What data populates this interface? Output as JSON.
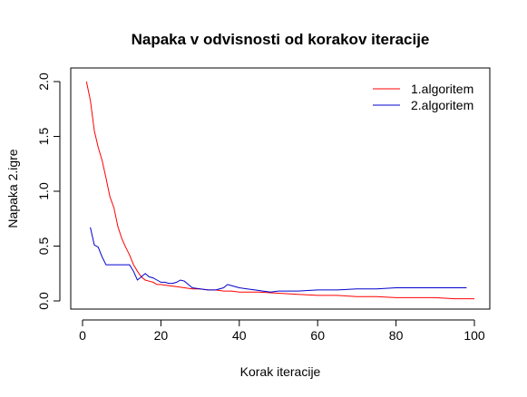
{
  "chart_data": {
    "type": "line",
    "title": "Napaka v odvisnosti od korakov iteracije",
    "xlabel": "Korak iteracije",
    "ylabel": "Napaka 2.igre",
    "xlim": [
      0,
      100
    ],
    "ylim": [
      0,
      2.0
    ],
    "x_ticks": [
      "0",
      "20",
      "40",
      "60",
      "80",
      "100"
    ],
    "y_ticks": [
      "0.0",
      "0.5",
      "1.0",
      "1.5",
      "2.0"
    ],
    "grid": false,
    "legend_position": "top-right",
    "legend_box": false,
    "series": [
      {
        "name": "1.algoritem",
        "color": "#ff0000",
        "x": [
          1,
          2,
          3,
          4,
          5,
          6,
          7,
          8,
          9,
          10,
          11,
          12,
          13,
          14,
          15,
          16,
          17,
          18,
          19,
          20,
          22,
          24,
          26,
          28,
          30,
          32,
          34,
          36,
          38,
          40,
          45,
          50,
          55,
          60,
          65,
          70,
          75,
          80,
          85,
          90,
          95,
          100
        ],
        "y": [
          2.0,
          1.83,
          1.55,
          1.4,
          1.28,
          1.12,
          0.95,
          0.85,
          0.68,
          0.57,
          0.49,
          0.42,
          0.33,
          0.27,
          0.22,
          0.19,
          0.18,
          0.17,
          0.15,
          0.15,
          0.14,
          0.13,
          0.12,
          0.11,
          0.11,
          0.1,
          0.1,
          0.09,
          0.09,
          0.08,
          0.08,
          0.07,
          0.06,
          0.05,
          0.05,
          0.04,
          0.04,
          0.03,
          0.03,
          0.03,
          0.02,
          0.02
        ]
      },
      {
        "name": "2.algoritem",
        "color": "#0000cd",
        "x": [
          2,
          3,
          4,
          5,
          6,
          7,
          8,
          9,
          10,
          11,
          12,
          13,
          14,
          15,
          16,
          17,
          18,
          19,
          20,
          21,
          22,
          23,
          24,
          25,
          26,
          27,
          28,
          30,
          32,
          34,
          36,
          37,
          38,
          40,
          42,
          44,
          46,
          48,
          50,
          55,
          60,
          65,
          70,
          75,
          80,
          85,
          90,
          95,
          98
        ],
        "y": [
          0.67,
          0.51,
          0.49,
          0.4,
          0.33,
          0.33,
          0.33,
          0.33,
          0.33,
          0.33,
          0.33,
          0.27,
          0.19,
          0.22,
          0.25,
          0.22,
          0.21,
          0.19,
          0.17,
          0.17,
          0.16,
          0.16,
          0.17,
          0.19,
          0.18,
          0.15,
          0.12,
          0.11,
          0.1,
          0.1,
          0.12,
          0.15,
          0.14,
          0.12,
          0.11,
          0.1,
          0.09,
          0.08,
          0.09,
          0.09,
          0.1,
          0.1,
          0.11,
          0.11,
          0.12,
          0.12,
          0.12,
          0.12,
          0.12
        ]
      }
    ]
  }
}
